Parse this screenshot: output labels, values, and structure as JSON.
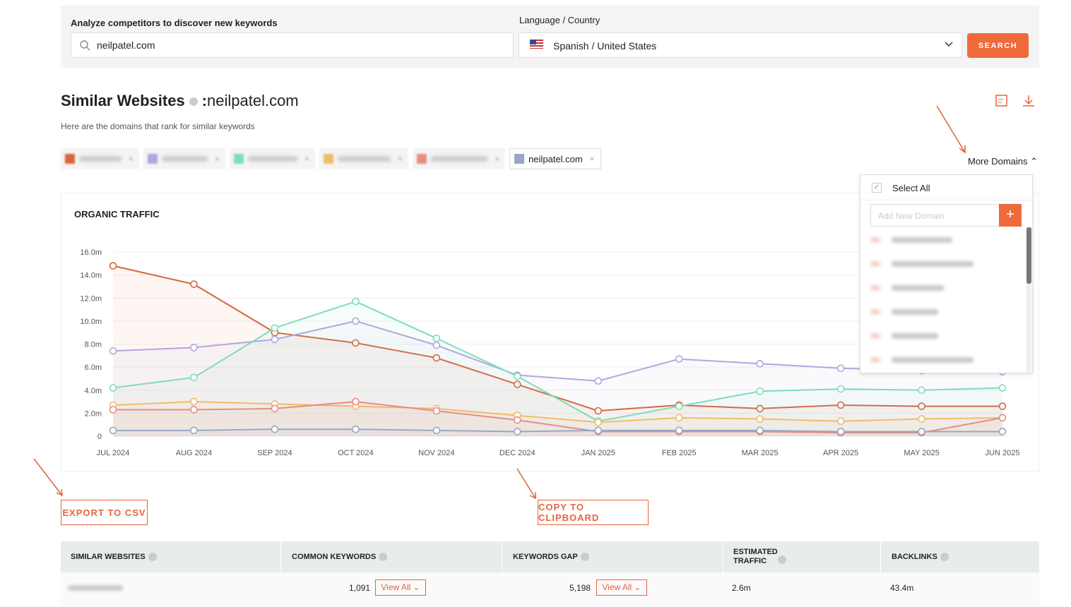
{
  "search": {
    "label": "Analyze competitors to discover new keywords",
    "query": "neilpatel.com",
    "language_label": "Language / Country",
    "language": "Spanish / United States",
    "button": "SEARCH"
  },
  "header": {
    "title": "Similar Websites",
    "separator": ":",
    "domain": "neilpatel.com",
    "subtitle": "Here are the domains that rank for similar keywords",
    "more_domains": "More Domains"
  },
  "dropdown": {
    "select_all": "Select All",
    "placeholder": "Add New Domain",
    "add_button": "+"
  },
  "chart_data": {
    "type": "line",
    "title": "ORGANIC TRAFFIC",
    "categories": [
      "JUL 2024",
      "AUG 2024",
      "SEP 2024",
      "OCT 2024",
      "NOV 2024",
      "DEC 2024",
      "JAN 2025",
      "FEB 2025",
      "MAR 2025",
      "APR 2025",
      "MAY 2025",
      "JUN 2025"
    ],
    "ylim": [
      0,
      16
    ],
    "yticks": [
      0,
      {
        "value": 2,
        "label": "2.0m"
      },
      {
        "value": 4,
        "label": "4.0m"
      },
      {
        "value": 6,
        "label": "6.0m"
      },
      {
        "value": 8,
        "label": "8.0m"
      },
      {
        "value": 10,
        "label": "10.0m"
      },
      {
        "value": 12,
        "label": "12.0m"
      },
      {
        "value": 14,
        "label": "14.0m"
      },
      {
        "value": 16,
        "label": "16.0m"
      }
    ],
    "grid": true,
    "series": [
      {
        "color": "#d9643a",
        "values": [
          14.8,
          13.2,
          9.0,
          8.1,
          6.8,
          4.5,
          2.2,
          2.7,
          2.4,
          2.7,
          2.6,
          2.6
        ]
      },
      {
        "color": "#b0a6e0",
        "values": [
          7.4,
          7.7,
          8.4,
          10.0,
          7.9,
          5.3,
          4.8,
          6.7,
          6.3,
          5.9,
          5.7,
          5.6
        ]
      },
      {
        "color": "#7fdcbc",
        "values": [
          4.2,
          5.1,
          9.4,
          11.7,
          8.5,
          5.2,
          1.3,
          2.6,
          3.9,
          4.1,
          4.0,
          4.2
        ]
      },
      {
        "color": "#f2bb6b",
        "values": [
          2.7,
          3.0,
          2.8,
          2.6,
          2.4,
          1.8,
          1.2,
          1.6,
          1.5,
          1.3,
          1.5,
          1.6
        ]
      },
      {
        "color": "#e88c86",
        "values": [
          2.3,
          2.3,
          2.4,
          3.0,
          2.2,
          1.4,
          0.4,
          0.4,
          0.4,
          0.3,
          0.3,
          1.6
        ]
      },
      {
        "name": "neilpatel.com",
        "color": "#9aa6c4",
        "values": [
          0.5,
          0.5,
          0.6,
          0.6,
          0.5,
          0.4,
          0.5,
          0.5,
          0.5,
          0.4,
          0.4,
          0.4
        ]
      }
    ]
  },
  "actions": {
    "export": "EXPORT TO CSV",
    "copy": "COPY TO CLIPBOARD"
  },
  "table": {
    "headers": [
      "SIMILAR WEBSITES",
      "COMMON KEYWORDS",
      "KEYWORDS GAP",
      "ESTIMATED TRAFFIC",
      "BACKLINKS"
    ],
    "rows": [
      [
        "1,091",
        "View All",
        "5,198",
        "View All",
        "2.6m",
        "43.4m"
      ]
    ]
  }
}
